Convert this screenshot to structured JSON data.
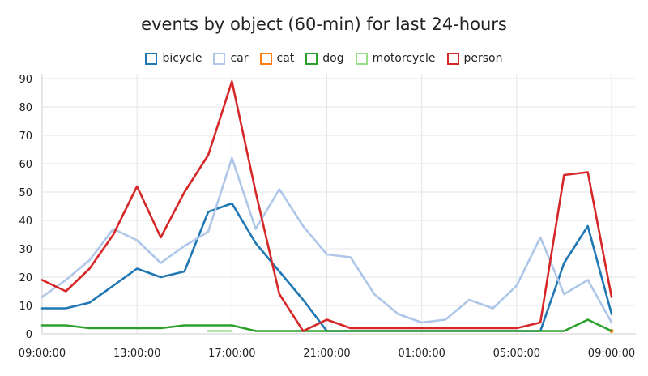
{
  "chart_data": {
    "type": "line",
    "title": "events by object (60-min) for last 24-hours",
    "xlabel": "",
    "ylabel": "",
    "ylim": [
      0,
      90
    ],
    "yticks": [
      0,
      10,
      20,
      30,
      40,
      50,
      60,
      70,
      80,
      90
    ],
    "xticks": [
      "09:00:00",
      "13:00:00",
      "17:00:00",
      "21:00:00",
      "01:00:00",
      "05:00:00",
      "09:00:00"
    ],
    "xrange": [
      0,
      24
    ],
    "grid": true,
    "legend_position": "top",
    "series": [
      {
        "name": "bicycle",
        "color": "#1f77b4",
        "points": [
          [
            0,
            9
          ],
          [
            1,
            9
          ],
          [
            2,
            11
          ],
          [
            3,
            17
          ],
          [
            4,
            23
          ],
          [
            5,
            20
          ],
          [
            6,
            22
          ],
          [
            7,
            43
          ],
          [
            8,
            46
          ],
          [
            9,
            32
          ],
          [
            10,
            22
          ],
          [
            11,
            12
          ],
          [
            12,
            1
          ],
          [
            13,
            1
          ],
          [
            14,
            1
          ],
          [
            15,
            1
          ],
          [
            16,
            1
          ],
          [
            17,
            1
          ],
          [
            18,
            1
          ],
          [
            19,
            1
          ],
          [
            20,
            1
          ],
          [
            21,
            1
          ],
          [
            22,
            25
          ],
          [
            23,
            38
          ],
          [
            24,
            7
          ]
        ]
      },
      {
        "name": "car",
        "color": "#aec7e8",
        "points": [
          [
            0,
            13
          ],
          [
            1,
            19
          ],
          [
            2,
            26
          ],
          [
            3,
            37
          ],
          [
            4,
            33
          ],
          [
            5,
            25
          ],
          [
            6,
            31
          ],
          [
            7,
            36
          ],
          [
            8,
            62
          ],
          [
            9,
            37
          ],
          [
            10,
            51
          ],
          [
            11,
            38
          ],
          [
            12,
            28
          ],
          [
            13,
            27
          ],
          [
            14,
            14
          ],
          [
            15,
            7
          ],
          [
            16,
            4
          ],
          [
            17,
            5
          ],
          [
            18,
            12
          ],
          [
            19,
            9
          ],
          [
            20,
            17
          ],
          [
            21,
            34
          ],
          [
            22,
            14
          ],
          [
            23,
            19
          ],
          [
            24,
            4
          ]
        ]
      },
      {
        "name": "cat",
        "color": "#ff7f0e",
        "points": [
          [
            24,
            1
          ]
        ]
      },
      {
        "name": "dog",
        "color": "#2ca02c",
        "points": [
          [
            0,
            3
          ],
          [
            1,
            3
          ],
          [
            2,
            2
          ],
          [
            3,
            2
          ],
          [
            4,
            2
          ],
          [
            5,
            2
          ],
          [
            6,
            3
          ],
          [
            7,
            3
          ],
          [
            8,
            3
          ],
          [
            9,
            1
          ],
          [
            10,
            1
          ],
          [
            11,
            1
          ],
          [
            12,
            1
          ],
          [
            13,
            1
          ],
          [
            14,
            1
          ],
          [
            15,
            1
          ],
          [
            16,
            1
          ],
          [
            17,
            1
          ],
          [
            18,
            1
          ],
          [
            19,
            1
          ],
          [
            20,
            1
          ],
          [
            21,
            1
          ],
          [
            22,
            1
          ],
          [
            23,
            5
          ],
          [
            24,
            1
          ]
        ]
      },
      {
        "name": "motorcycle",
        "color": "#98df8a",
        "points": [
          [
            7,
            1
          ],
          [
            8,
            1
          ]
        ]
      },
      {
        "name": "person",
        "color": "#d62728",
        "points": [
          [
            0,
            19
          ],
          [
            1,
            15
          ],
          [
            2,
            23
          ],
          [
            3,
            35
          ],
          [
            4,
            52
          ],
          [
            5,
            34
          ],
          [
            6,
            50
          ],
          [
            7,
            63
          ],
          [
            8,
            89
          ],
          [
            9,
            50
          ],
          [
            10,
            14
          ],
          [
            11,
            1
          ],
          [
            12,
            5
          ],
          [
            13,
            2
          ],
          [
            14,
            2
          ],
          [
            15,
            2
          ],
          [
            16,
            2
          ],
          [
            17,
            2
          ],
          [
            18,
            2
          ],
          [
            19,
            2
          ],
          [
            20,
            2
          ],
          [
            21,
            4
          ],
          [
            22,
            56
          ],
          [
            23,
            57
          ],
          [
            24,
            13
          ]
        ]
      }
    ]
  }
}
